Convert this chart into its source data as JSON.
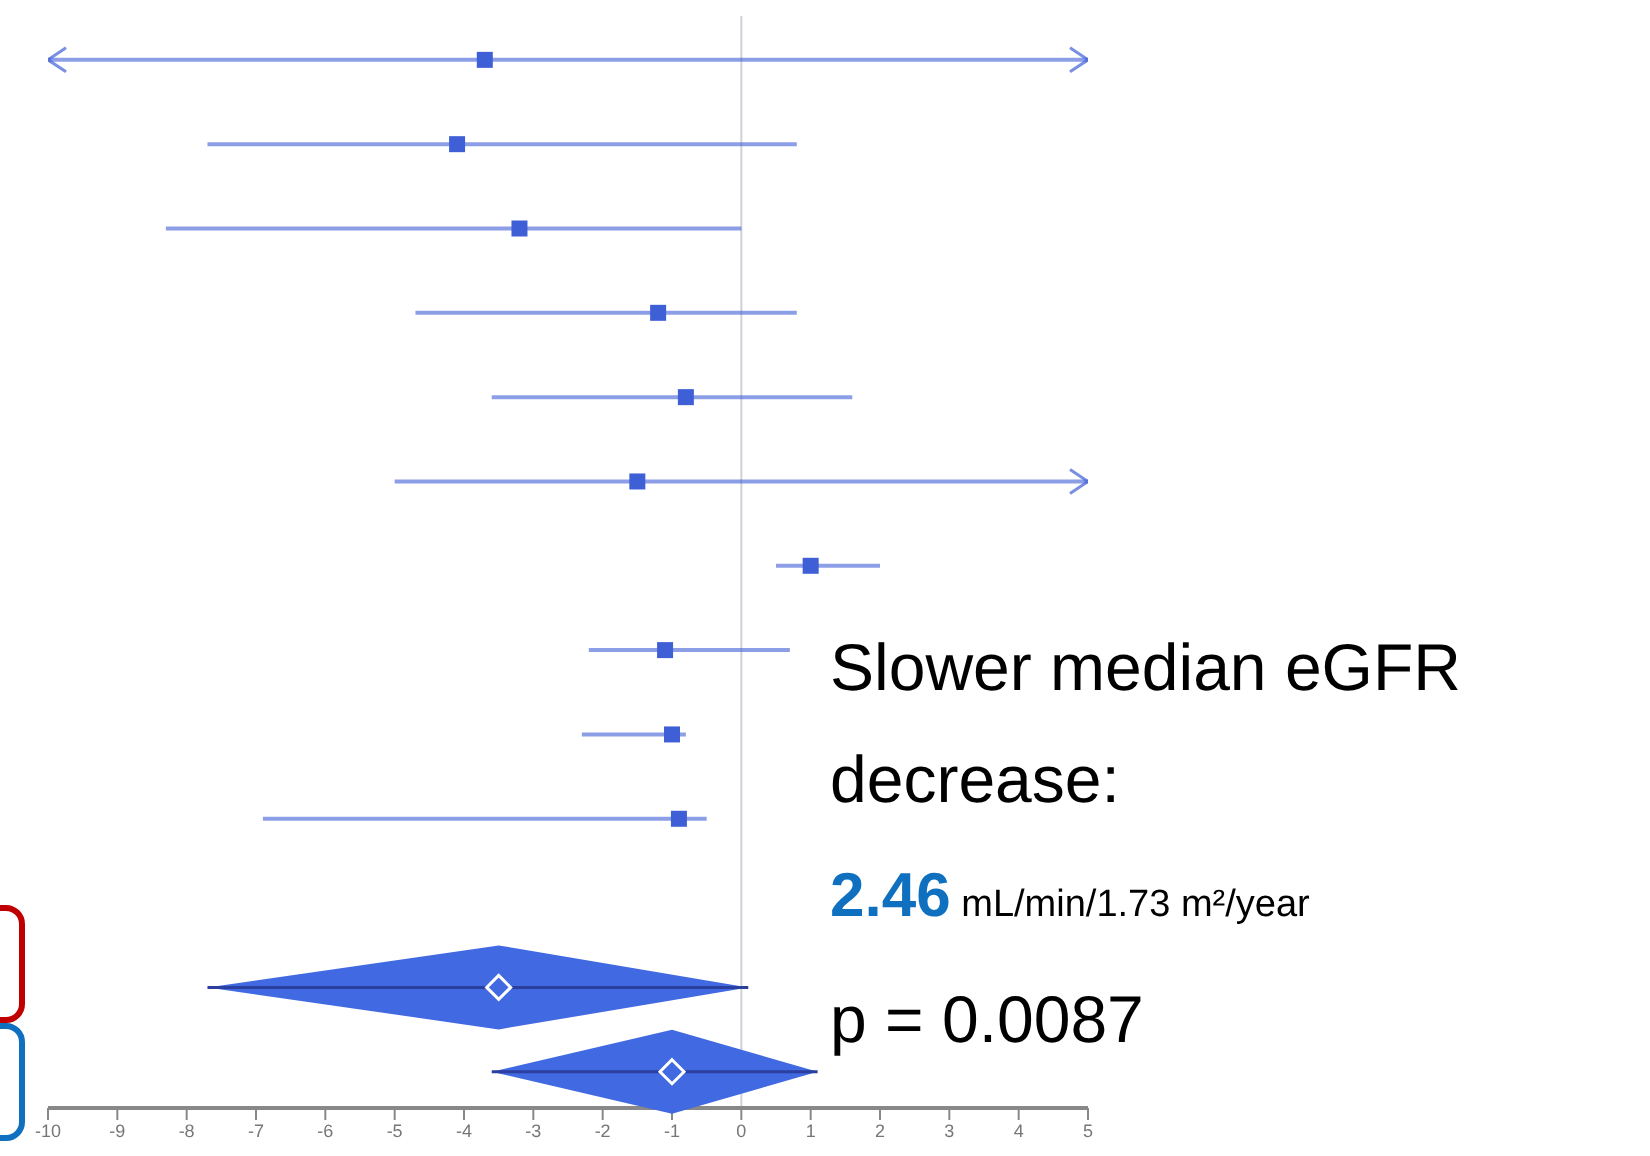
{
  "chart_data": {
    "type": "scatter",
    "orientation": "horizontal",
    "categories": [
      null,
      null,
      null,
      null,
      null,
      null,
      null,
      null,
      null,
      null,
      null,
      null,
      null
    ],
    "series": [
      {
        "marker": "square",
        "color": "#3f5fd6",
        "values": [
          -3.7,
          -4.1,
          -3.2,
          -1.2,
          -0.8,
          -1.5,
          1.0,
          -1.1,
          -1.0,
          -0.9,
          null,
          null,
          null
        ],
        "errors": [
          [
            -10,
            5
          ],
          [
            -7.7,
            0.8
          ],
          [
            -8.3,
            0
          ],
          [
            -4.7,
            0.8
          ],
          [
            -3.6,
            1.6
          ],
          [
            -5.0,
            5
          ],
          [
            0.5,
            2.0
          ],
          [
            -2.2,
            0.7
          ],
          [
            -2.3,
            -0.8
          ],
          [
            -6.9,
            -0.5
          ],
          null,
          null,
          null
        ]
      },
      {
        "marker": "diamond",
        "color": "#4169e1",
        "values": [
          null,
          null,
          null,
          null,
          null,
          null,
          null,
          null,
          null,
          null,
          null,
          -3.5,
          -1.0
        ],
        "errors": [
          null,
          null,
          null,
          null,
          null,
          null,
          null,
          null,
          null,
          null,
          null,
          [
            -7.7,
            0.1
          ],
          [
            -3.6,
            1.1
          ]
        ]
      }
    ],
    "xlim": [
      -10,
      5
    ],
    "xticks": [
      -10,
      -9,
      -8,
      -7,
      -6,
      -5,
      -4,
      -3,
      -2,
      -1,
      0,
      1,
      2,
      3,
      4,
      5
    ],
    "tick_labels": "x",
    "grid": false,
    "legend": false,
    "ref_lines": [
      {
        "axis": "x",
        "value": 0,
        "color": "#d0d0d8"
      }
    ],
    "annotations": [
      "Slower median eGFR decrease:",
      "2.46",
      "mL/min/1.73 m²/year",
      "p = 0.0087"
    ]
  }
}
